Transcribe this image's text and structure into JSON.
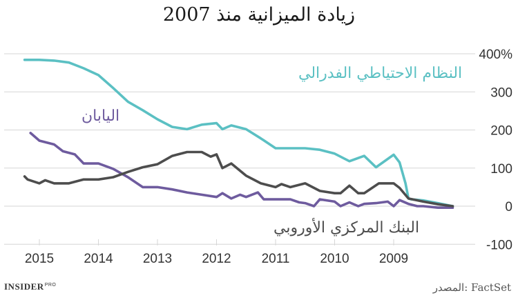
{
  "chart_data": {
    "type": "line",
    "title": "زيادة الميزانية منذ 2007",
    "x_ticks": [
      "2015",
      "2014",
      "2013",
      "2012",
      "2011",
      "2010",
      "2009"
    ],
    "y_ticks": [
      "400%",
      "300",
      "200",
      "100",
      "0",
      "-100"
    ],
    "ylim": [
      -100,
      400
    ],
    "grid": true,
    "x_axis_direction": "right-to-left",
    "series": [
      {
        "name": "النظام الاحتياطي الفدرالي",
        "color": "#5bc0c3",
        "x": [
          2015.25,
          2015.0,
          2014.75,
          2014.5,
          2014.25,
          2014.0,
          2013.75,
          2013.5,
          2013.25,
          2013.0,
          2012.75,
          2012.5,
          2012.25,
          2012.0,
          2011.9,
          2011.75,
          2011.5,
          2011.25,
          2011.0,
          2010.75,
          2010.5,
          2010.25,
          2010.0,
          2009.75,
          2009.5,
          2009.3,
          2009.0,
          2008.9,
          2008.8,
          2008.75,
          2008.7,
          2008.5,
          2008.25,
          2008.0
        ],
        "values": [
          384,
          384,
          382,
          377,
          362,
          344,
          310,
          274,
          252,
          228,
          208,
          202,
          214,
          218,
          202,
          212,
          202,
          178,
          152,
          152,
          152,
          148,
          138,
          118,
          132,
          102,
          135,
          115,
          60,
          20,
          18,
          15,
          8,
          0
        ]
      },
      {
        "name": "اليابان",
        "color": "#6e5b9e",
        "x": [
          2015.15,
          2015.0,
          2014.75,
          2014.6,
          2014.4,
          2014.25,
          2014.0,
          2013.75,
          2013.5,
          2013.25,
          2013.0,
          2012.75,
          2012.5,
          2012.25,
          2012.0,
          2011.9,
          2011.75,
          2011.6,
          2011.5,
          2011.3,
          2011.2,
          2011.0,
          2010.75,
          2010.6,
          2010.5,
          2010.35,
          2010.25,
          2010.0,
          2009.9,
          2009.75,
          2009.6,
          2009.5,
          2009.3,
          2009.1,
          2009.0,
          2008.9,
          2008.75,
          2008.6,
          2008.5,
          2008.25,
          2008.0
        ],
        "values": [
          192,
          172,
          162,
          144,
          136,
          112,
          112,
          98,
          76,
          50,
          50,
          44,
          36,
          30,
          24,
          34,
          20,
          30,
          24,
          36,
          18,
          18,
          18,
          10,
          8,
          0,
          18,
          12,
          0,
          10,
          0,
          6,
          8,
          12,
          0,
          16,
          6,
          0,
          0,
          -4,
          -4
        ]
      },
      {
        "name": "البنك المركزي الأوروبي",
        "color": "#4d4d4d",
        "x": [
          2015.25,
          2015.2,
          2015.0,
          2014.9,
          2014.75,
          2014.5,
          2014.25,
          2014.0,
          2013.75,
          2013.5,
          2013.25,
          2013.0,
          2012.75,
          2012.5,
          2012.25,
          2012.1,
          2012.0,
          2011.9,
          2011.75,
          2011.5,
          2011.25,
          2011.0,
          2010.9,
          2010.75,
          2010.5,
          2010.25,
          2010.0,
          2009.9,
          2009.75,
          2009.6,
          2009.5,
          2009.25,
          2009.0,
          2008.9,
          2008.75,
          2008.5,
          2008.25,
          2008.0
        ],
        "values": [
          78,
          70,
          60,
          68,
          60,
          60,
          70,
          70,
          76,
          90,
          102,
          110,
          132,
          142,
          142,
          130,
          136,
          100,
          112,
          80,
          60,
          50,
          58,
          50,
          60,
          40,
          34,
          34,
          54,
          34,
          34,
          60,
          60,
          48,
          20,
          12,
          5,
          0
        ]
      }
    ]
  },
  "footer": {
    "source": "المصدر: FactSet",
    "brand": "INSIDER",
    "brand_sup": "PRO"
  }
}
